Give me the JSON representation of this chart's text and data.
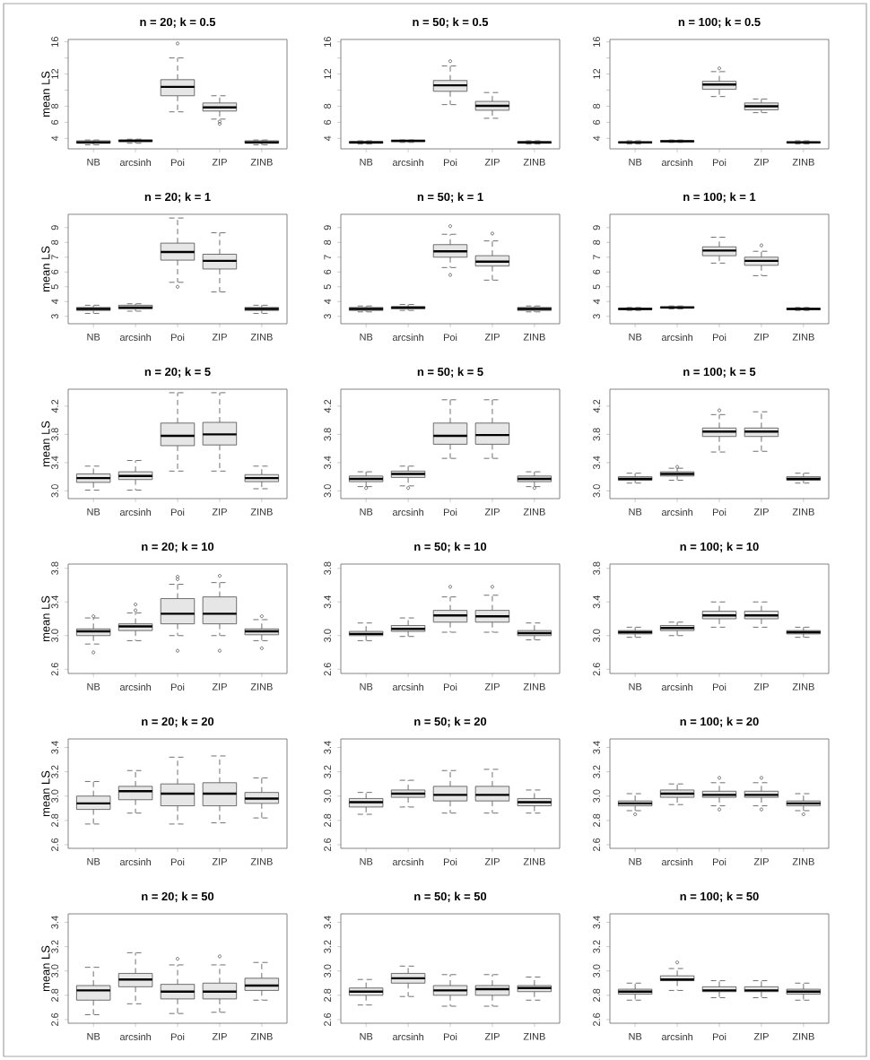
{
  "chart_data": [
    {
      "type": "box",
      "title": "n = 20; k = 0.5",
      "ylabel": "mean LS",
      "categories": [
        "NB",
        "arcsinh",
        "Poi",
        "ZIP",
        "ZINB"
      ],
      "ylim": [
        2.7,
        16.3
      ],
      "yticks": [
        4,
        6,
        8,
        {
          "value": 10,
          "label": null
        },
        12,
        {
          "value": 14,
          "label": null
        },
        16
      ],
      "series": [
        {
          "color": "#e6e6e6",
          "boxes": [
            {
              "low": 3.2,
              "q1": 3.4,
              "median": 3.5,
              "q3": 3.7,
              "high": 3.8
            },
            {
              "low": 3.4,
              "q1": 3.6,
              "median": 3.7,
              "q3": 3.8,
              "high": 3.9
            },
            {
              "low": 7.3,
              "q1": 9.3,
              "median": 10.4,
              "q3": 11.3,
              "high": 14.0,
              "outliers": [
                15.8
              ]
            },
            {
              "low": 6.4,
              "q1": 7.4,
              "median": 7.85,
              "q3": 8.4,
              "high": 9.3,
              "outliers": [
                6.1,
                5.8
              ]
            },
            {
              "low": 3.2,
              "q1": 3.4,
              "median": 3.5,
              "q3": 3.7,
              "high": 3.8
            }
          ]
        }
      ]
    },
    {
      "type": "box",
      "title": "n = 50; k = 0.5",
      "categories": [
        "NB",
        "arcsinh",
        "Poi",
        "ZIP",
        "ZINB"
      ],
      "ylim": [
        2.7,
        16.3
      ],
      "yticks": [
        4,
        6,
        8,
        {
          "value": 10,
          "label": null
        },
        12,
        {
          "value": 14,
          "label": null
        },
        16
      ],
      "series": [
        {
          "color": "#e6e6e6",
          "boxes": [
            {
              "low": 3.3,
              "q1": 3.4,
              "median": 3.5,
              "q3": 3.6,
              "high": 3.7
            },
            {
              "low": 3.5,
              "q1": 3.6,
              "median": 3.7,
              "q3": 3.75,
              "high": 3.8
            },
            {
              "low": 8.2,
              "q1": 9.85,
              "median": 10.6,
              "q3": 11.2,
              "high": 13.0,
              "outliers": [
                13.6
              ]
            },
            {
              "low": 6.5,
              "q1": 7.5,
              "median": 8.05,
              "q3": 8.6,
              "high": 9.7
            },
            {
              "low": 3.3,
              "q1": 3.4,
              "median": 3.5,
              "q3": 3.6,
              "high": 3.7
            }
          ]
        }
      ]
    },
    {
      "type": "box",
      "title": "n = 100; k = 0.5",
      "categories": [
        "NB",
        "arcsinh",
        "Poi",
        "ZIP",
        "ZINB"
      ],
      "ylim": [
        2.7,
        16.3
      ],
      "yticks": [
        4,
        6,
        8,
        {
          "value": 10,
          "label": null
        },
        12,
        {
          "value": 14,
          "label": null
        },
        16
      ],
      "series": [
        {
          "color": "#e6e6e6",
          "boxes": [
            {
              "low": 3.3,
              "q1": 3.45,
              "median": 3.5,
              "q3": 3.55,
              "high": 3.7
            },
            {
              "low": 3.5,
              "q1": 3.6,
              "median": 3.65,
              "q3": 3.7,
              "high": 3.8
            },
            {
              "low": 9.2,
              "q1": 10.1,
              "median": 10.7,
              "q3": 11.1,
              "high": 12.3,
              "outliers": [
                12.7
              ]
            },
            {
              "low": 7.2,
              "q1": 7.55,
              "median": 8.0,
              "q3": 8.4,
              "high": 8.9
            },
            {
              "low": 3.3,
              "q1": 3.45,
              "median": 3.5,
              "q3": 3.55,
              "high": 3.7
            }
          ]
        }
      ]
    },
    {
      "type": "box",
      "title": "n = 20; k = 1",
      "ylabel": "mean LS",
      "categories": [
        "NB",
        "arcsinh",
        "Poi",
        "ZIP",
        "ZINB"
      ],
      "ylim": [
        2.5,
        9.9
      ],
      "yticks": [
        3,
        4,
        5,
        6,
        7,
        8,
        9
      ],
      "series": [
        {
          "color": "#e6e6e6",
          "boxes": [
            {
              "low": 3.2,
              "q1": 3.4,
              "median": 3.5,
              "q3": 3.6,
              "high": 3.75
            },
            {
              "low": 3.35,
              "q1": 3.5,
              "median": 3.6,
              "q3": 3.75,
              "high": 3.85
            },
            {
              "low": 5.3,
              "q1": 6.8,
              "median": 7.35,
              "q3": 7.95,
              "high": 9.65,
              "outliers": [
                5.0
              ]
            },
            {
              "low": 4.65,
              "q1": 6.2,
              "median": 6.75,
              "q3": 7.2,
              "high": 8.65
            },
            {
              "low": 3.2,
              "q1": 3.4,
              "median": 3.5,
              "q3": 3.6,
              "high": 3.75
            }
          ]
        }
      ]
    },
    {
      "type": "box",
      "title": "n = 50; k = 1",
      "categories": [
        "NB",
        "arcsinh",
        "Poi",
        "ZIP",
        "ZINB"
      ],
      "ylim": [
        2.5,
        9.9
      ],
      "yticks": [
        3,
        4,
        5,
        6,
        7,
        8,
        9
      ],
      "series": [
        {
          "color": "#e6e6e6",
          "boxes": [
            {
              "low": 3.3,
              "q1": 3.4,
              "median": 3.5,
              "q3": 3.6,
              "high": 3.7
            },
            {
              "low": 3.4,
              "q1": 3.5,
              "median": 3.6,
              "q3": 3.65,
              "high": 3.8
            },
            {
              "low": 6.3,
              "q1": 7.0,
              "median": 7.4,
              "q3": 7.85,
              "high": 8.55,
              "outliers": [
                9.1,
                5.8
              ]
            },
            {
              "low": 5.45,
              "q1": 6.4,
              "median": 6.7,
              "q3": 7.1,
              "high": 8.1,
              "outliers": [
                8.6
              ]
            },
            {
              "low": 3.3,
              "q1": 3.4,
              "median": 3.5,
              "q3": 3.6,
              "high": 3.7
            }
          ]
        }
      ]
    },
    {
      "type": "box",
      "title": "n = 100; k = 1",
      "categories": [
        "NB",
        "arcsinh",
        "Poi",
        "ZIP",
        "ZINB"
      ],
      "ylim": [
        2.5,
        9.9
      ],
      "yticks": [
        3,
        4,
        5,
        6,
        7,
        8,
        9
      ],
      "series": [
        {
          "color": "#e6e6e6",
          "boxes": [
            {
              "low": 3.4,
              "q1": 3.45,
              "median": 3.5,
              "q3": 3.55,
              "high": 3.6
            },
            {
              "low": 3.5,
              "q1": 3.55,
              "median": 3.6,
              "q3": 3.65,
              "high": 3.7
            },
            {
              "low": 6.6,
              "q1": 7.1,
              "median": 7.45,
              "q3": 7.7,
              "high": 8.35
            },
            {
              "low": 5.75,
              "q1": 6.45,
              "median": 6.75,
              "q3": 7.0,
              "high": 7.4,
              "outliers": [
                7.8
              ]
            },
            {
              "low": 3.4,
              "q1": 3.45,
              "median": 3.5,
              "q3": 3.55,
              "high": 3.6
            }
          ]
        }
      ]
    },
    {
      "type": "box",
      "title": "n = 20; k = 5",
      "ylabel": "mean LS",
      "categories": [
        "NB",
        "arcsinh",
        "Poi",
        "ZIP",
        "ZINB"
      ],
      "ylim": [
        2.89,
        4.44
      ],
      "yticks": [
        {
          "value": 3,
          "label": "3.0"
        },
        3.4,
        3.8,
        4.2
      ],
      "series": [
        {
          "color": "#e6e6e6",
          "boxes": [
            {
              "low": 3.01,
              "q1": 3.12,
              "median": 3.18,
              "q3": 3.24,
              "high": 3.35
            },
            {
              "low": 3.01,
              "q1": 3.16,
              "median": 3.21,
              "q3": 3.27,
              "high": 3.43
            },
            {
              "low": 3.28,
              "q1": 3.64,
              "median": 3.78,
              "q3": 3.96,
              "high": 4.39
            },
            {
              "low": 3.28,
              "q1": 3.65,
              "median": 3.8,
              "q3": 3.97,
              "high": 4.39
            },
            {
              "low": 3.03,
              "q1": 3.13,
              "median": 3.18,
              "q3": 3.23,
              "high": 3.35
            }
          ]
        }
      ]
    },
    {
      "type": "box",
      "title": "n = 50; k = 5",
      "categories": [
        "NB",
        "arcsinh",
        "Poi",
        "ZIP",
        "ZINB"
      ],
      "ylim": [
        2.89,
        4.44
      ],
      "yticks": [
        {
          "value": 3,
          "label": "3.0"
        },
        3.4,
        3.8,
        4.2
      ],
      "series": [
        {
          "color": "#e6e6e6",
          "boxes": [
            {
              "low": 3.06,
              "q1": 3.13,
              "median": 3.17,
              "q3": 3.21,
              "high": 3.27,
              "outliers": [
                3.04
              ]
            },
            {
              "low": 3.07,
              "q1": 3.19,
              "median": 3.24,
              "q3": 3.28,
              "high": 3.35,
              "outliers": [
                3.04
              ]
            },
            {
              "low": 3.46,
              "q1": 3.66,
              "median": 3.78,
              "q3": 3.96,
              "high": 4.29
            },
            {
              "low": 3.46,
              "q1": 3.66,
              "median": 3.79,
              "q3": 3.96,
              "high": 4.29
            },
            {
              "low": 3.06,
              "q1": 3.13,
              "median": 3.17,
              "q3": 3.21,
              "high": 3.27,
              "outliers": [
                3.04
              ]
            }
          ]
        }
      ]
    },
    {
      "type": "box",
      "title": "n = 100; k = 5",
      "categories": [
        "NB",
        "arcsinh",
        "Poi",
        "ZIP",
        "ZINB"
      ],
      "ylim": [
        2.89,
        4.44
      ],
      "yticks": [
        {
          "value": 3,
          "label": "3.0"
        },
        3.4,
        3.8,
        4.2
      ],
      "series": [
        {
          "color": "#e6e6e6",
          "boxes": [
            {
              "low": 3.11,
              "q1": 3.15,
              "median": 3.17,
              "q3": 3.2,
              "high": 3.25
            },
            {
              "low": 3.15,
              "q1": 3.21,
              "median": 3.24,
              "q3": 3.27,
              "high": 3.32,
              "outliers": [
                3.34
              ]
            },
            {
              "low": 3.55,
              "q1": 3.77,
              "median": 3.84,
              "q3": 3.89,
              "high": 4.08,
              "outliers": [
                4.14
              ]
            },
            {
              "low": 3.56,
              "q1": 3.77,
              "median": 3.84,
              "q3": 3.89,
              "high": 4.12
            },
            {
              "low": 3.11,
              "q1": 3.15,
              "median": 3.17,
              "q3": 3.2,
              "high": 3.25
            }
          ]
        }
      ]
    },
    {
      "type": "box",
      "title": "n = 20; k = 10",
      "ylabel": "mean LS",
      "categories": [
        "NB",
        "arcsinh",
        "Poi",
        "ZIP",
        "ZINB"
      ],
      "ylim": [
        2.55,
        3.85
      ],
      "yticks": [
        2.6,
        {
          "value": 3,
          "label": "3.0"
        },
        3.4,
        3.8
      ],
      "series": [
        {
          "color": "#e6e6e6",
          "boxes": [
            {
              "low": 2.9,
              "q1": 3.0,
              "median": 3.05,
              "q3": 3.08,
              "high": 3.21,
              "outliers": [
                3.23,
                2.8
              ]
            },
            {
              "low": 2.94,
              "q1": 3.06,
              "median": 3.11,
              "q3": 3.14,
              "high": 3.27,
              "outliers": [
                3.37,
                3.3
              ]
            },
            {
              "low": 3.0,
              "q1": 3.14,
              "median": 3.26,
              "q3": 3.44,
              "high": 3.61,
              "outliers": [
                3.7,
                3.67,
                2.82
              ]
            },
            {
              "low": 3.0,
              "q1": 3.14,
              "median": 3.26,
              "q3": 3.46,
              "high": 3.63,
              "outliers": [
                3.71,
                2.82
              ]
            },
            {
              "low": 2.94,
              "q1": 3.01,
              "median": 3.05,
              "q3": 3.08,
              "high": 3.19,
              "outliers": [
                3.23,
                2.85
              ]
            }
          ]
        }
      ]
    },
    {
      "type": "box",
      "title": "n = 50; k = 10",
      "categories": [
        "NB",
        "arcsinh",
        "Poi",
        "ZIP",
        "ZINB"
      ],
      "ylim": [
        2.55,
        3.85
      ],
      "yticks": [
        2.6,
        {
          "value": 3,
          "label": "3.0"
        },
        3.4,
        3.8
      ],
      "series": [
        {
          "color": "#e6e6e6",
          "boxes": [
            {
              "low": 2.94,
              "q1": 3.0,
              "median": 3.02,
              "q3": 3.05,
              "high": 3.15
            },
            {
              "low": 2.99,
              "q1": 3.05,
              "median": 3.08,
              "q3": 3.12,
              "high": 3.21
            },
            {
              "low": 3.04,
              "q1": 3.16,
              "median": 3.24,
              "q3": 3.3,
              "high": 3.46,
              "outliers": [
                3.58
              ]
            },
            {
              "low": 3.04,
              "q1": 3.16,
              "median": 3.23,
              "q3": 3.3,
              "high": 3.48,
              "outliers": [
                3.58
              ]
            },
            {
              "low": 2.95,
              "q1": 3.0,
              "median": 3.03,
              "q3": 3.06,
              "high": 3.15
            }
          ]
        }
      ]
    },
    {
      "type": "box",
      "title": "n = 100; k = 10",
      "categories": [
        "NB",
        "arcsinh",
        "Poi",
        "ZIP",
        "ZINB"
      ],
      "ylim": [
        2.55,
        3.85
      ],
      "yticks": [
        2.6,
        {
          "value": 3,
          "label": "3.0"
        },
        3.4,
        3.8
      ],
      "series": [
        {
          "color": "#e6e6e6",
          "boxes": [
            {
              "low": 2.98,
              "q1": 3.02,
              "median": 3.04,
              "q3": 3.06,
              "high": 3.1
            },
            {
              "low": 3.0,
              "q1": 3.06,
              "median": 3.09,
              "q3": 3.12,
              "high": 3.16
            },
            {
              "low": 3.1,
              "q1": 3.2,
              "median": 3.24,
              "q3": 3.29,
              "high": 3.4
            },
            {
              "low": 3.1,
              "q1": 3.2,
              "median": 3.24,
              "q3": 3.29,
              "high": 3.4
            },
            {
              "low": 2.98,
              "q1": 3.02,
              "median": 3.04,
              "q3": 3.06,
              "high": 3.1
            }
          ]
        }
      ]
    },
    {
      "type": "box",
      "title": "n = 20; k = 20",
      "ylabel": "mean LS",
      "categories": [
        "NB",
        "arcsinh",
        "Poi",
        "ZIP",
        "ZINB"
      ],
      "ylim": [
        2.57,
        3.47
      ],
      "yticks": [
        2.6,
        2.8,
        {
          "value": 3,
          "label": "3.0"
        },
        3.2,
        3.4
      ],
      "series": [
        {
          "color": "#e6e6e6",
          "boxes": [
            {
              "low": 2.77,
              "q1": 2.89,
              "median": 2.94,
              "q3": 3.0,
              "high": 3.12
            },
            {
              "low": 2.86,
              "q1": 2.97,
              "median": 3.04,
              "q3": 3.08,
              "high": 3.21
            },
            {
              "low": 2.77,
              "q1": 2.92,
              "median": 3.02,
              "q3": 3.1,
              "high": 3.32
            },
            {
              "low": 2.78,
              "q1": 2.92,
              "median": 3.02,
              "q3": 3.11,
              "high": 3.33
            },
            {
              "low": 2.82,
              "q1": 2.94,
              "median": 2.98,
              "q3": 3.03,
              "high": 3.15
            }
          ]
        }
      ]
    },
    {
      "type": "box",
      "title": "n = 50; k = 20",
      "categories": [
        "NB",
        "arcsinh",
        "Poi",
        "ZIP",
        "ZINB"
      ],
      "ylim": [
        2.57,
        3.47
      ],
      "yticks": [
        2.6,
        2.8,
        {
          "value": 3,
          "label": "3.0"
        },
        3.2,
        3.4
      ],
      "series": [
        {
          "color": "#e6e6e6",
          "boxes": [
            {
              "low": 2.85,
              "q1": 2.91,
              "median": 2.95,
              "q3": 2.98,
              "high": 3.03
            },
            {
              "low": 2.91,
              "q1": 2.99,
              "median": 3.02,
              "q3": 3.05,
              "high": 3.13
            },
            {
              "low": 2.86,
              "q1": 2.96,
              "median": 3.01,
              "q3": 3.08,
              "high": 3.21
            },
            {
              "low": 2.86,
              "q1": 2.96,
              "median": 3.01,
              "q3": 3.08,
              "high": 3.22
            },
            {
              "low": 2.86,
              "q1": 2.92,
              "median": 2.95,
              "q3": 2.98,
              "high": 3.05
            }
          ]
        }
      ]
    },
    {
      "type": "box",
      "title": "n = 100; k = 20",
      "categories": [
        "NB",
        "arcsinh",
        "Poi",
        "ZIP",
        "ZINB"
      ],
      "ylim": [
        2.57,
        3.47
      ],
      "yticks": [
        2.6,
        2.8,
        {
          "value": 3,
          "label": "3.0"
        },
        3.2,
        3.4
      ],
      "series": [
        {
          "color": "#e6e6e6",
          "boxes": [
            {
              "low": 2.88,
              "q1": 2.92,
              "median": 2.94,
              "q3": 2.96,
              "high": 3.02,
              "outliers": [
                2.85
              ]
            },
            {
              "low": 2.93,
              "q1": 2.99,
              "median": 3.02,
              "q3": 3.05,
              "high": 3.1
            },
            {
              "low": 2.92,
              "q1": 2.99,
              "median": 3.01,
              "q3": 3.04,
              "high": 3.11,
              "outliers": [
                3.15,
                2.89
              ]
            },
            {
              "low": 2.92,
              "q1": 2.99,
              "median": 3.01,
              "q3": 3.04,
              "high": 3.11,
              "outliers": [
                3.15,
                2.89
              ]
            },
            {
              "low": 2.88,
              "q1": 2.92,
              "median": 2.94,
              "q3": 2.96,
              "high": 3.02,
              "outliers": [
                2.85
              ]
            }
          ]
        }
      ]
    },
    {
      "type": "box",
      "title": "n = 20; k = 50",
      "ylabel": "mean LS",
      "categories": [
        "NB",
        "arcsinh",
        "Poi",
        "ZIP",
        "ZINB"
      ],
      "ylim": [
        2.57,
        3.47
      ],
      "yticks": [
        2.6,
        2.8,
        {
          "value": 3,
          "label": "3.0"
        },
        3.2,
        3.4
      ],
      "series": [
        {
          "color": "#e6e6e6",
          "boxes": [
            {
              "low": 2.64,
              "q1": 2.76,
              "median": 2.84,
              "q3": 2.88,
              "high": 3.03
            },
            {
              "low": 2.73,
              "q1": 2.87,
              "median": 2.93,
              "q3": 2.98,
              "high": 3.15
            },
            {
              "low": 2.65,
              "q1": 2.77,
              "median": 2.83,
              "q3": 2.89,
              "high": 3.05,
              "outliers": [
                3.1
              ]
            },
            {
              "low": 2.66,
              "q1": 2.77,
              "median": 2.83,
              "q3": 2.9,
              "high": 3.05,
              "outliers": [
                3.12
              ]
            },
            {
              "low": 2.76,
              "q1": 2.84,
              "median": 2.88,
              "q3": 2.94,
              "high": 3.07
            }
          ]
        }
      ]
    },
    {
      "type": "box",
      "title": "n = 50; k = 50",
      "categories": [
        "NB",
        "arcsinh",
        "Poi",
        "ZIP",
        "ZINB"
      ],
      "ylim": [
        2.57,
        3.47
      ],
      "yticks": [
        2.6,
        2.8,
        {
          "value": 3,
          "label": "3.0"
        },
        3.2,
        3.4
      ],
      "series": [
        {
          "color": "#e6e6e6",
          "boxes": [
            {
              "low": 2.72,
              "q1": 2.8,
              "median": 2.83,
              "q3": 2.86,
              "high": 2.93
            },
            {
              "low": 2.79,
              "q1": 2.9,
              "median": 2.94,
              "q3": 2.98,
              "high": 3.04
            },
            {
              "low": 2.71,
              "q1": 2.8,
              "median": 2.84,
              "q3": 2.88,
              "high": 2.97
            },
            {
              "low": 2.71,
              "q1": 2.8,
              "median": 2.85,
              "q3": 2.88,
              "high": 2.97
            },
            {
              "low": 2.76,
              "q1": 2.83,
              "median": 2.86,
              "q3": 2.88,
              "high": 2.95
            }
          ]
        }
      ]
    },
    {
      "type": "box",
      "title": "n = 100; k = 50",
      "categories": [
        "NB",
        "arcsinh",
        "Poi",
        "ZIP",
        "ZINB"
      ],
      "ylim": [
        2.57,
        3.47
      ],
      "yticks": [
        2.6,
        2.8,
        {
          "value": 3,
          "label": "3.0"
        },
        3.2,
        3.4
      ],
      "series": [
        {
          "color": "#e6e6e6",
          "boxes": [
            {
              "low": 2.76,
              "q1": 2.81,
              "median": 2.83,
              "q3": 2.85,
              "high": 2.9
            },
            {
              "low": 2.84,
              "q1": 2.92,
              "median": 2.93,
              "q3": 2.96,
              "high": 3.02,
              "outliers": [
                3.07
              ]
            },
            {
              "low": 2.78,
              "q1": 2.83,
              "median": 2.84,
              "q3": 2.87,
              "high": 2.92
            },
            {
              "low": 2.78,
              "q1": 2.83,
              "median": 2.84,
              "q3": 2.87,
              "high": 2.92
            },
            {
              "low": 2.76,
              "q1": 2.81,
              "median": 2.83,
              "q3": 2.85,
              "high": 2.9
            }
          ]
        }
      ]
    }
  ]
}
